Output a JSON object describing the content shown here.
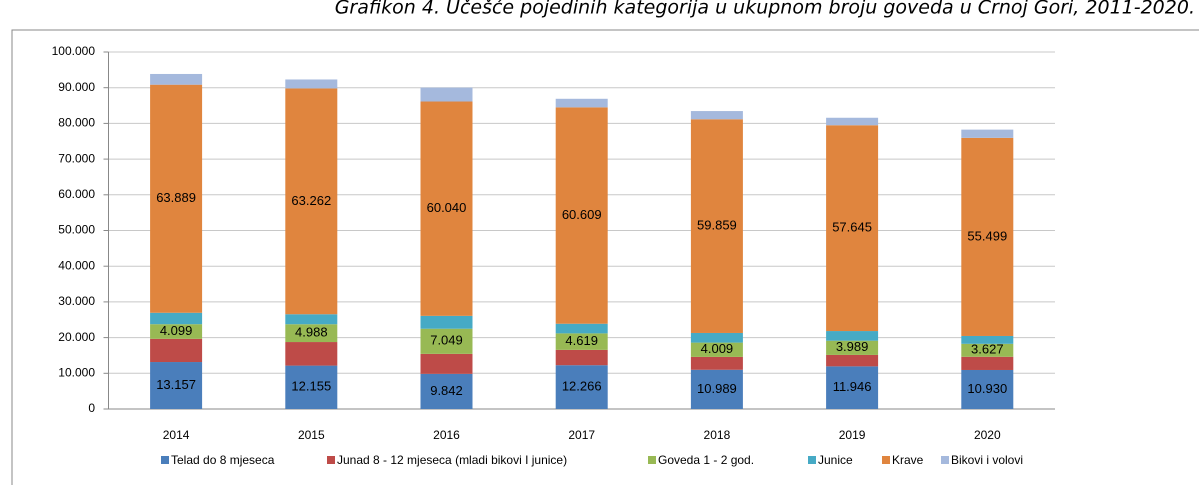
{
  "chart_data": {
    "type": "stacked_bar",
    "title": "Grafikon 4. Učešće pojedinih kategorija u ukupnom broju goveda u Crnoj Gori, 2011-2020.",
    "categories": [
      "2014",
      "2015",
      "2016",
      "2017",
      "2018",
      "2019",
      "2020"
    ],
    "series": [
      {
        "name": "Telad do 8 mjeseca",
        "color": "#4a7ebb",
        "values": [
          13157,
          12155,
          9842,
          12266,
          10989,
          11946,
          10930
        ],
        "value_labels": [
          "13.157",
          "12.155",
          "9.842",
          "12.266",
          "10.989",
          "11.946",
          "10.930"
        ]
      },
      {
        "name": "Junad 8 - 12 mjeseca (mladi  bikovi I junice)",
        "color": "#be4b48",
        "values": [
          6500,
          6600,
          5600,
          4300,
          3600,
          3200,
          3700
        ]
      },
      {
        "name": "Goveda  1 - 2 god.",
        "color": "#98b954",
        "values": [
          4099,
          4988,
          7049,
          4619,
          4009,
          3989,
          3627
        ],
        "value_labels": [
          "4.099",
          "4.988",
          "7.049",
          "4.619",
          "4.009",
          "3.989",
          "3.627"
        ]
      },
      {
        "name": "Junice",
        "color": "#46aac5",
        "values": [
          3200,
          2800,
          3600,
          2700,
          2700,
          2700,
          2200
        ]
      },
      {
        "name": "Krave",
        "color": "#e0853e",
        "values": [
          63889,
          63262,
          60040,
          60609,
          59859,
          57645,
          55499
        ],
        "value_labels": [
          "63.889",
          "63.262",
          "60.040",
          "60.609",
          "59.859",
          "57.645",
          "55.499"
        ]
      },
      {
        "name": "Bikovi i volovi",
        "color": "#a5b9dd",
        "values": [
          3000,
          2500,
          3900,
          2400,
          2300,
          2100,
          2300
        ]
      }
    ],
    "ylim": [
      0,
      100000
    ],
    "yticks": [
      0,
      {
        "value": 10000,
        "label": "10.000"
      },
      {
        "value": 20000,
        "label": "20.000"
      },
      {
        "value": 30000,
        "label": "30.000"
      },
      {
        "value": 40000,
        "label": "40.000"
      },
      {
        "value": 50000,
        "label": "50.000"
      },
      {
        "value": 60000,
        "label": "60.000"
      },
      {
        "value": 70000,
        "label": "70.000"
      },
      {
        "value": 80000,
        "label": "80.000"
      },
      {
        "value": 90000,
        "label": "90.000"
      },
      {
        "value": 100000,
        "label": "100.000"
      }
    ],
    "grid": true
  }
}
